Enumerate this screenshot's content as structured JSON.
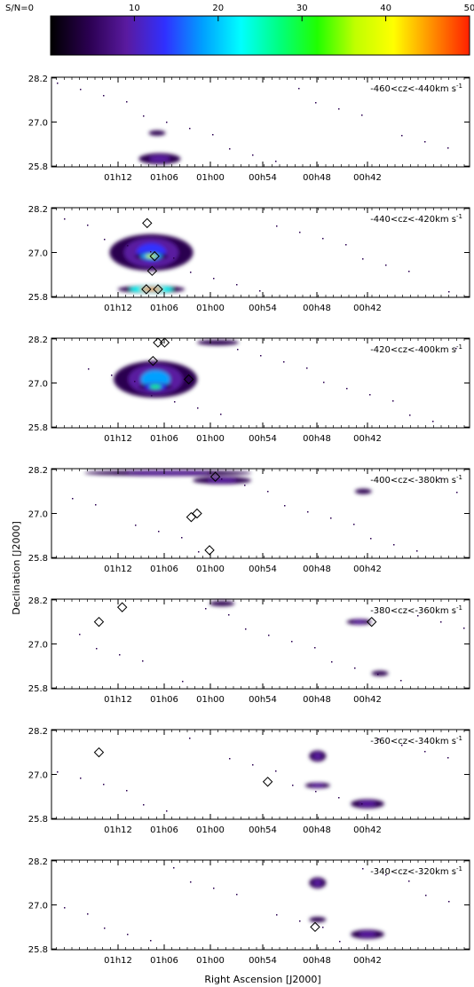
{
  "colorbar": {
    "label": "S/N=0",
    "ticks": [
      "10",
      "20",
      "30",
      "40",
      "50"
    ],
    "range": [
      0,
      50
    ],
    "colors": [
      "#000000",
      "#2a0050",
      "#5a1aa0",
      "#3030ff",
      "#00a0ff",
      "#00ffff",
      "#00ff80",
      "#20ff00",
      "#c0ff00",
      "#ffff00",
      "#ff9000",
      "#ff2000"
    ]
  },
  "axes": {
    "ylabel": "Declination [J2000]",
    "xlabel": "Right Ascension [J2000]",
    "ytick_labels": [
      "28.2",
      "27.0",
      "25.8"
    ],
    "xtick_labels": [
      "01h12",
      "01h06",
      "01h00",
      "00h54",
      "00h48",
      "00h42"
    ]
  },
  "chart_data": {
    "type": "heatmap",
    "description_free": true,
    "y_ticks": [
      28.2,
      27.0,
      25.8
    ],
    "x_ticks": [
      "01h12",
      "01h06",
      "01h00",
      "00h54",
      "00h48",
      "00h42"
    ],
    "panels": [
      {
        "label": "-460<cz<-440km s",
        "unit_exp": "-1",
        "blobs": [
          {
            "ra": "01h07",
            "dec": 26.0,
            "snr": 5,
            "w": 0.05,
            "h": 0.3
          },
          {
            "ra": "01h07.3",
            "dec": 26.7,
            "snr": 3,
            "w": 0.02,
            "h": 0.1
          }
        ],
        "markers": []
      },
      {
        "label": "-440<cz<-420km s",
        "unit_exp": "-1",
        "blobs": [
          {
            "ra": "01h08",
            "dec": 27.0,
            "snr": 15,
            "w": 0.1,
            "h": 1.0
          },
          {
            "ra": "01h08",
            "dec": 26.0,
            "snr": 45,
            "w": 0.08,
            "h": 0.2
          },
          {
            "ra": "01h08",
            "dec": 26.9,
            "snr": 35,
            "w": 0.04,
            "h": 0.2
          }
        ],
        "markers": [
          {
            "ra": "01h08.5",
            "dec": 27.8
          },
          {
            "ra": "01h07.6",
            "dec": 26.9
          },
          {
            "ra": "01h07.9",
            "dec": 26.5
          },
          {
            "ra": "01h08.6",
            "dec": 26.0
          },
          {
            "ra": "01h07.2",
            "dec": 26.0
          }
        ]
      },
      {
        "label": "-420<cz<-400km s",
        "unit_exp": "-1",
        "blobs": [
          {
            "ra": "01h07.5",
            "dec": 27.1,
            "snr": 18,
            "w": 0.1,
            "h": 1.0
          },
          {
            "ra": "01h07.5",
            "dec": 26.9,
            "snr": 28,
            "w": 0.04,
            "h": 0.2
          },
          {
            "ra": "01h00",
            "dec": 28.1,
            "snr": 4,
            "w": 0.05,
            "h": 0.15
          }
        ],
        "markers": [
          {
            "ra": "01h07.2",
            "dec": 28.1
          },
          {
            "ra": "01h06.4",
            "dec": 28.1
          },
          {
            "ra": "01h07.8",
            "dec": 27.6
          },
          {
            "ra": "01h03.5",
            "dec": 27.1
          }
        ]
      },
      {
        "label": "-400<cz<-380km s",
        "unit_exp": "-1",
        "blobs": [
          {
            "ra": "01h06",
            "dec": 28.1,
            "snr": 6,
            "w": 0.2,
            "h": 0.15
          },
          {
            "ra": "00h59.5",
            "dec": 27.9,
            "snr": 8,
            "w": 0.07,
            "h": 0.2
          },
          {
            "ra": "00h42.5",
            "dec": 27.6,
            "snr": 3,
            "w": 0.02,
            "h": 0.1
          }
        ],
        "markers": [
          {
            "ra": "01h00.3",
            "dec": 28.0
          },
          {
            "ra": "01h03.2",
            "dec": 26.9
          },
          {
            "ra": "01h02.5",
            "dec": 27.0
          },
          {
            "ra": "01h01.0",
            "dec": 26.0
          }
        ]
      },
      {
        "label": "-380<cz<-360km s",
        "unit_exp": "-1",
        "blobs": [
          {
            "ra": "00h59.5",
            "dec": 28.1,
            "snr": 4,
            "w": 0.03,
            "h": 0.1
          },
          {
            "ra": "00h43.0",
            "dec": 27.6,
            "snr": 5,
            "w": 0.03,
            "h": 0.15
          },
          {
            "ra": "00h40.5",
            "dec": 26.2,
            "snr": 4,
            "w": 0.02,
            "h": 0.1
          }
        ],
        "markers": [
          {
            "ra": "01h14.3",
            "dec": 27.6
          },
          {
            "ra": "01h11.5",
            "dec": 28.0
          },
          {
            "ra": "00h41.5",
            "dec": 27.6
          }
        ]
      },
      {
        "label": "-360<cz<-340km s",
        "unit_exp": "-1",
        "blobs": [
          {
            "ra": "00h48",
            "dec": 27.5,
            "snr": 5,
            "w": 0.02,
            "h": 0.3
          },
          {
            "ra": "00h48",
            "dec": 26.7,
            "snr": 5,
            "w": 0.03,
            "h": 0.15
          },
          {
            "ra": "00h42",
            "dec": 26.2,
            "snr": 6,
            "w": 0.04,
            "h": 0.25
          }
        ],
        "markers": [
          {
            "ra": "01h14.3",
            "dec": 27.6
          },
          {
            "ra": "00h54",
            "dec": 26.8
          }
        ]
      },
      {
        "label": "-340<cz<-320km s",
        "unit_exp": "-1",
        "blobs": [
          {
            "ra": "00h48",
            "dec": 27.6,
            "snr": 5,
            "w": 0.02,
            "h": 0.3
          },
          {
            "ra": "00h48",
            "dec": 26.6,
            "snr": 4,
            "w": 0.02,
            "h": 0.15
          },
          {
            "ra": "00h42",
            "dec": 26.2,
            "snr": 6,
            "w": 0.04,
            "h": 0.25
          }
        ],
        "markers": [
          {
            "ra": "00h48.3",
            "dec": 26.4
          }
        ]
      }
    ]
  }
}
